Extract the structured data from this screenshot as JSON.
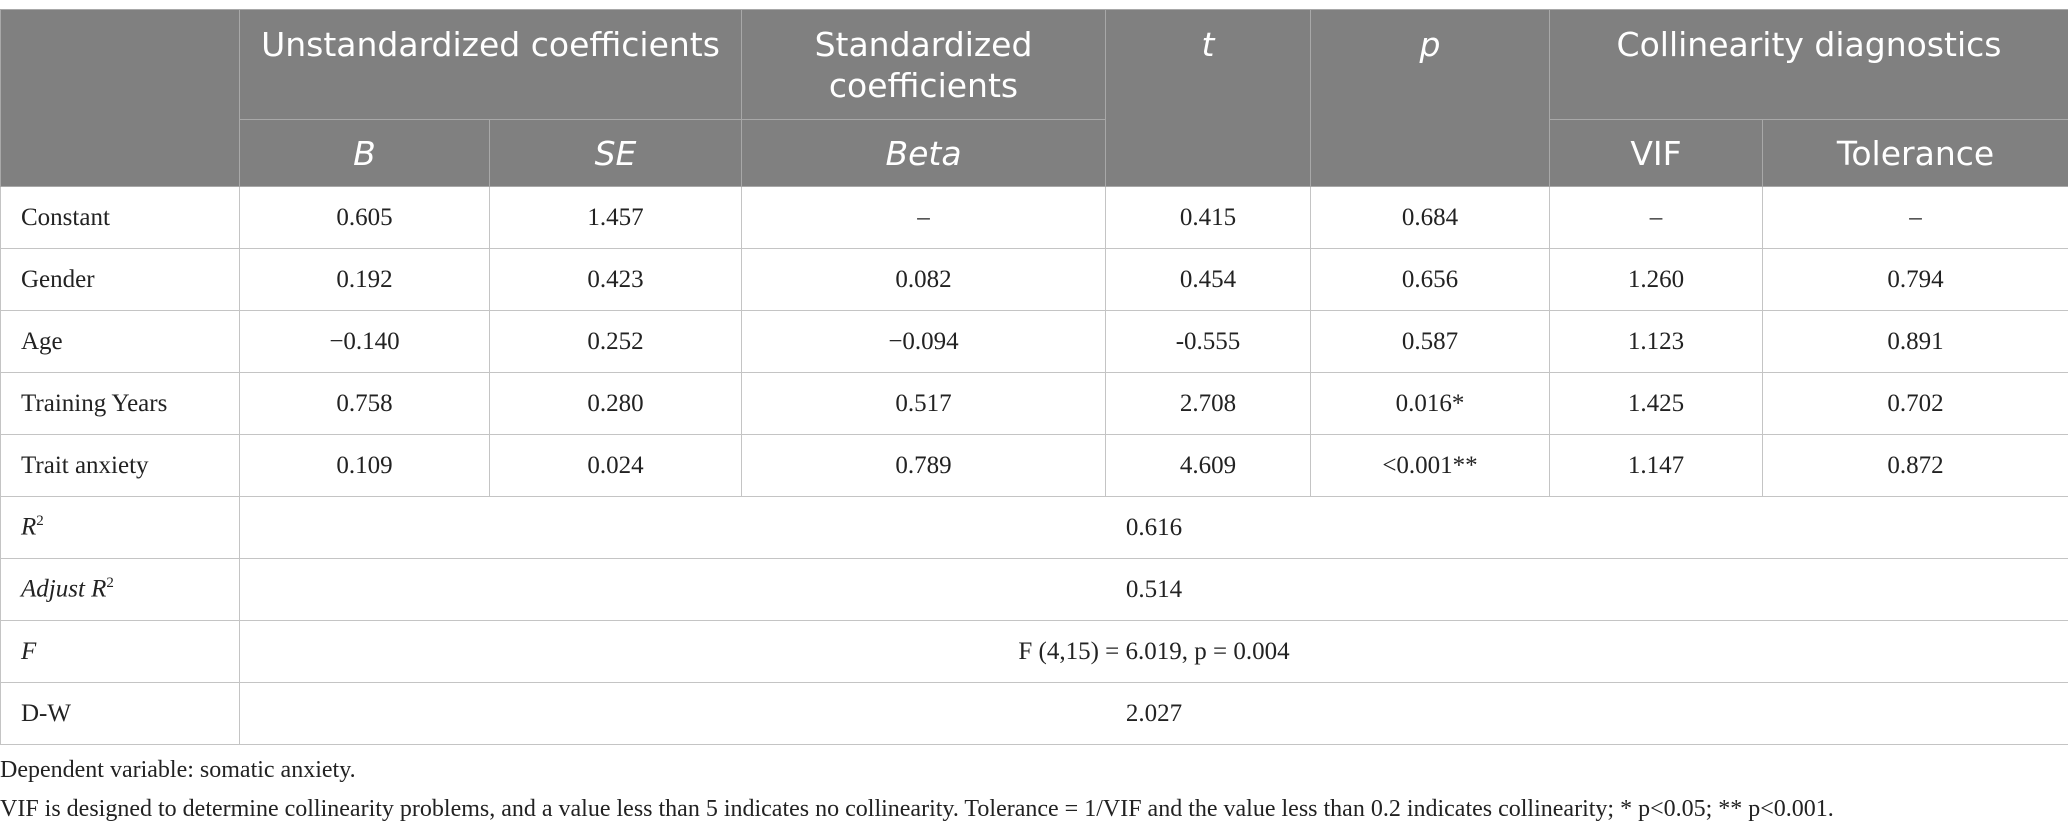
{
  "header": {
    "unstandardized": "Unstandardized coefficients",
    "standardized": "Standardized coefficients",
    "t": "t",
    "p": "p",
    "collinearity": "Collinearity diagnostics",
    "b": "B",
    "se": "SE",
    "beta": "Beta",
    "vif": "VIF",
    "tolerance": "Tolerance"
  },
  "rows": [
    [
      "Constant",
      "0.605",
      "1.457",
      "–",
      "0.415",
      "0.684",
      "–",
      "–"
    ],
    [
      "Gender",
      "0.192",
      "0.423",
      "0.082",
      "0.454",
      "0.656",
      "1.260",
      "0.794"
    ],
    [
      "Age",
      "−0.140",
      "0.252",
      "−0.094",
      "-0.555",
      "0.587",
      "1.123",
      "0.891"
    ],
    [
      "Training Years",
      "0.758",
      "0.280",
      "0.517",
      "2.708",
      "0.016*",
      "1.425",
      "0.702"
    ],
    [
      "Trait anxiety",
      "0.109",
      "0.024",
      "0.789",
      "4.609",
      "<0.001**",
      "1.147",
      "0.872"
    ]
  ],
  "summary": [
    {
      "label": "R",
      "label_sup": "2",
      "value": "0.616"
    },
    {
      "label": "Adjust R",
      "label_sup": "2",
      "value": "0.514"
    },
    {
      "label": "F",
      "value": "F (4,15) = 6.019, p = 0.004"
    },
    {
      "label": "D-W",
      "value": "2.027"
    }
  ],
  "notes": [
    "Dependent variable: somatic anxiety.",
    "VIF is designed to determine collinearity problems, and a value less than 5 indicates no collinearity. Tolerance = 1/VIF and the value less than 0.2 indicates collinearity; * p<0.05; ** p<0.001."
  ]
}
